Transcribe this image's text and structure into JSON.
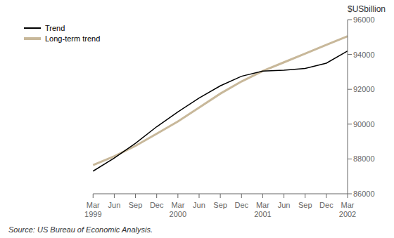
{
  "chart_data": {
    "type": "line",
    "ylabel": "$USbillion",
    "source": "Source: US Bureau of Economic Analysis.",
    "categories": [
      "Mar 1999",
      "Jun",
      "Sep",
      "Dec",
      "Mar 2000",
      "Jun",
      "Sep",
      "Dec",
      "Mar 2001",
      "Jun",
      "Sep",
      "Dec",
      "Mar 2002"
    ],
    "series": [
      {
        "name": "Trend",
        "color": "#000000",
        "values": [
          87300,
          88050,
          88900,
          89850,
          90700,
          91500,
          92200,
          92750,
          93050,
          93100,
          93200,
          93500,
          94200
        ]
      },
      {
        "name": "Long-term trend",
        "color": "#c8b89a",
        "values": [
          87650,
          88150,
          88750,
          89450,
          90150,
          90950,
          91750,
          92450,
          93050,
          93550,
          94050,
          94550,
          95050
        ]
      }
    ],
    "ylim": [
      86000,
      96000
    ],
    "yticks": [
      86000,
      88000,
      90000,
      92000,
      94000,
      96000
    ],
    "grid": false,
    "legend": "upper left"
  }
}
